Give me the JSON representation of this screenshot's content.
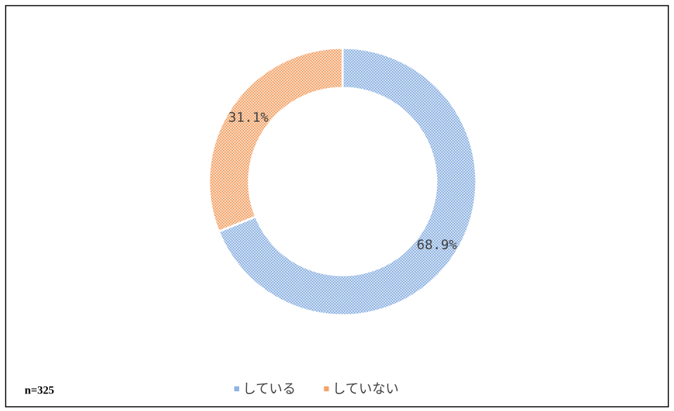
{
  "chart_data": {
    "type": "donut",
    "categories": [
      "している",
      "していない"
    ],
    "values": [
      68.9,
      31.1
    ],
    "value_labels": [
      "68.9%",
      "31.1%"
    ],
    "colors": [
      "#8fb4e3",
      "#f4a46a"
    ],
    "annotation": "n=325"
  }
}
